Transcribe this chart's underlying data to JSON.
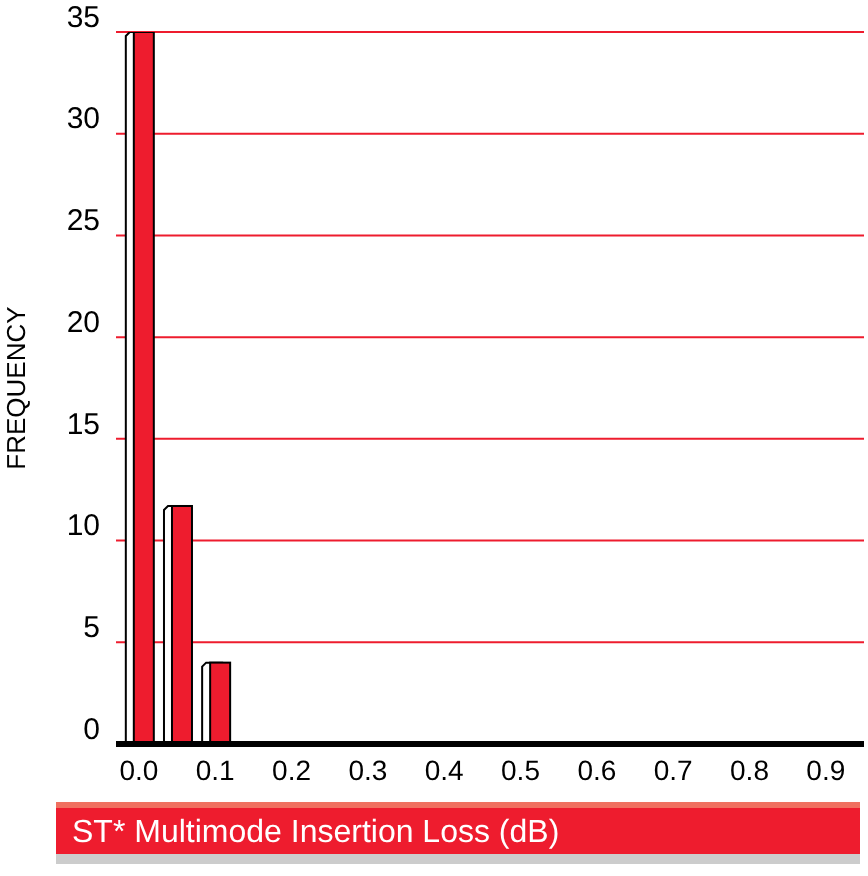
{
  "chart_data": {
    "type": "bar",
    "xlabel": "ST* Multimode Insertion Loss (dB)",
    "ylabel": "FREQUENCY",
    "x": [
      0,
      0.05,
      0.1
    ],
    "series": [
      {
        "color": "#ee1c2e",
        "values": [
          35,
          11.7,
          4
        ]
      }
    ],
    "xlim": [
      -0.03,
      0.95
    ],
    "xticks": [
      {
        "value": 0,
        "label": "0.0"
      },
      {
        "value": 0.1,
        "label": "0.1"
      },
      {
        "value": 0.2,
        "label": "0.2"
      },
      {
        "value": 0.3,
        "label": "0.3"
      },
      {
        "value": 0.4,
        "label": "0.4"
      },
      {
        "value": 0.5,
        "label": "0.5"
      },
      {
        "value": 0.6,
        "label": "0.6"
      },
      {
        "value": 0.7,
        "label": "0.7"
      },
      {
        "value": 0.8,
        "label": "0.8"
      },
      {
        "value": 0.9,
        "label": "0.9"
      }
    ],
    "ylim": [
      0,
      35
    ],
    "yticks": [
      0,
      5,
      10,
      15,
      20,
      25,
      30,
      35
    ],
    "grid": "y"
  }
}
